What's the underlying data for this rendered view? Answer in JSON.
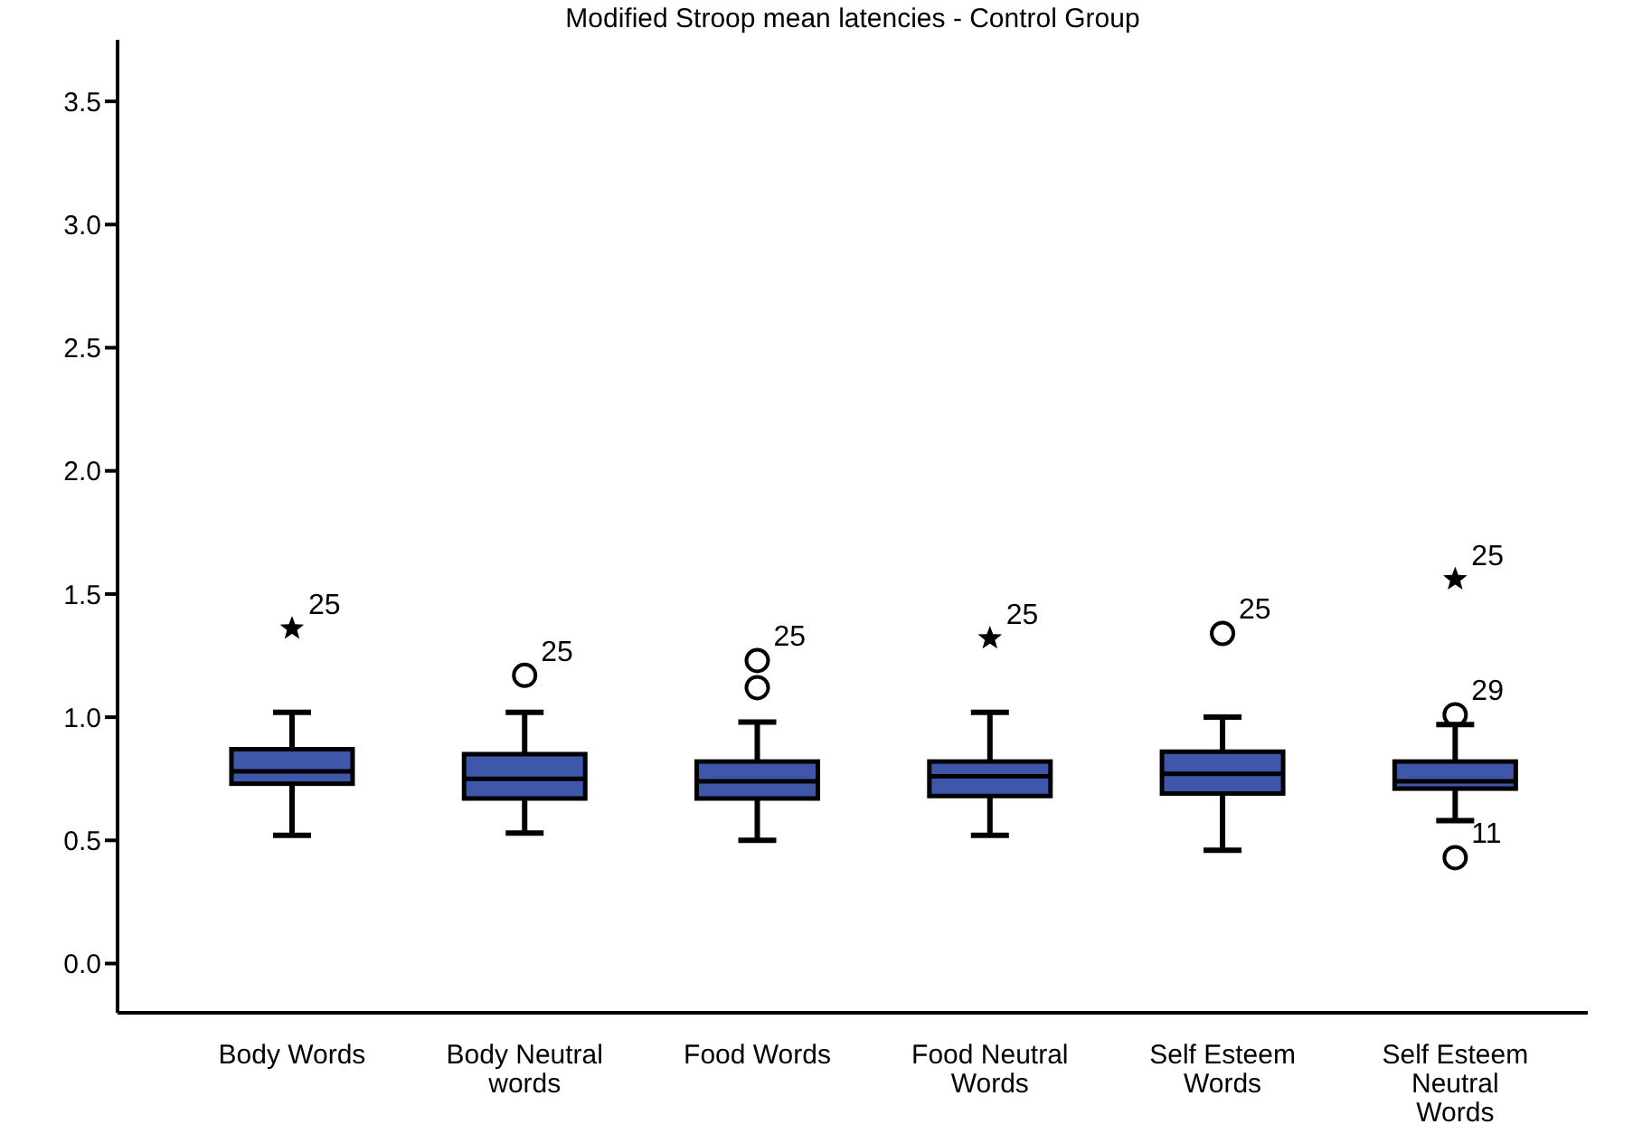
{
  "chart_data": {
    "type": "box",
    "title": "Modified Stroop mean latencies - Control Group",
    "categories": [
      "Body Words",
      "Body Neutral words",
      "Food Words",
      "Food Neutral Words",
      "Self Esteem Words",
      "Self Esteem Neutral Words"
    ],
    "ylim": [
      -0.2,
      3.75
    ],
    "yticks": [
      {
        "value": 0,
        "label": "0.0"
      },
      0.5,
      {
        "value": 1,
        "label": "1.0"
      },
      1.5,
      {
        "value": 2,
        "label": "2.0"
      },
      2.5,
      {
        "value": 3,
        "label": "3.0"
      },
      3.5
    ],
    "series": [
      {
        "color": "#3f57a8",
        "boxes": [
          {
            "low": 0.52,
            "q1": 0.73,
            "median": 0.78,
            "q3": 0.87,
            "high": 1.02
          },
          {
            "low": 0.53,
            "q1": 0.67,
            "median": 0.75,
            "q3": 0.85,
            "high": 1.02
          },
          {
            "low": 0.5,
            "q1": 0.67,
            "median": 0.74,
            "q3": 0.82,
            "high": 0.98
          },
          {
            "low": 0.52,
            "q1": 0.68,
            "median": 0.76,
            "q3": 0.82,
            "high": 1.02
          },
          {
            "low": 0.46,
            "q1": 0.69,
            "median": 0.77,
            "q3": 0.86,
            "high": 1.0
          },
          {
            "low": 0.58,
            "q1": 0.71,
            "median": 0.74,
            "q3": 0.82,
            "high": 0.97
          }
        ]
      },
      {
        "type": "scatter",
        "marker": "circle",
        "color": "#000000",
        "x": [
          "Body Neutral words",
          "Food Words",
          "Food Words",
          "Self Esteem Words",
          "Self Esteem Neutral Words",
          "Self Esteem Neutral Words"
        ],
        "values": [
          1.17,
          1.23,
          1.12,
          1.34,
          1.01,
          0.43
        ]
      },
      {
        "type": "scatter",
        "marker": "star",
        "color": "#000000",
        "x": [
          "Body Words",
          "Food Neutral Words",
          "Self Esteem Neutral Words"
        ],
        "values": [
          1.36,
          1.32,
          1.56
        ]
      }
    ],
    "annotations": [
      {
        "text": "25",
        "x": "Body Words",
        "y": 1.36
      },
      {
        "text": "25",
        "x": "Body Neutral words",
        "y": 1.17
      },
      {
        "text": "25",
        "x": "Food Words",
        "y": 1.23
      },
      {
        "text": "25",
        "x": "Food Neutral Words",
        "y": 1.32
      },
      {
        "text": "25",
        "x": "Self Esteem Words",
        "y": 1.34
      },
      {
        "text": "25",
        "x": "Self Esteem Neutral Words",
        "y": 1.56
      },
      {
        "text": "29",
        "x": "Self Esteem Neutral Words",
        "y": 1.01
      },
      {
        "text": "11",
        "x": "Self Esteem Neutral Words",
        "y": 0.43
      }
    ]
  }
}
